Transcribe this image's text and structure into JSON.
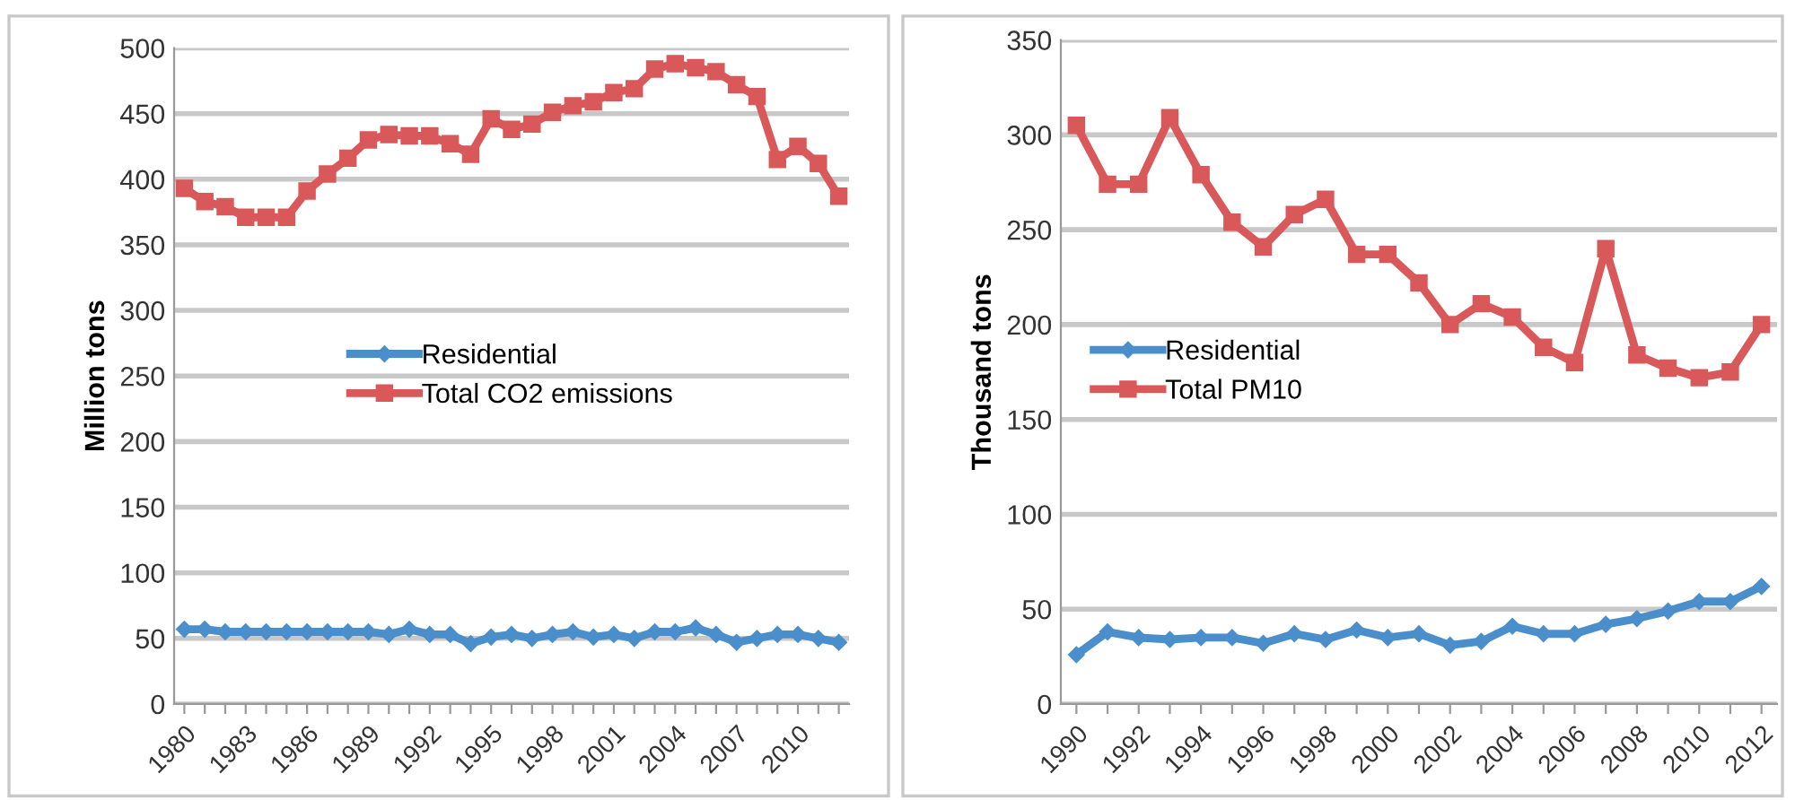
{
  "chart_data": [
    {
      "type": "line",
      "ylabel": "Million tons",
      "categories": [
        "1980",
        null,
        null,
        "1983",
        null,
        null,
        "1986",
        null,
        null,
        "1989",
        null,
        null,
        "1992",
        null,
        null,
        "1995",
        null,
        null,
        "1998",
        null,
        null,
        "2001",
        null,
        null,
        "2004",
        null,
        null,
        "2007",
        null,
        null,
        "2010",
        null,
        null
      ],
      "series": [
        {
          "name": "Residential",
          "color": "#4a8fcb",
          "marker": "diamond",
          "values": [
            57,
            57,
            55,
            55,
            55,
            55,
            55,
            55,
            55,
            55,
            53,
            57,
            53,
            53,
            46,
            51,
            53,
            50,
            53,
            55,
            51,
            53,
            50,
            55,
            55,
            58,
            53,
            47,
            50,
            53,
            53,
            50,
            47
          ]
        },
        {
          "name": "Total CO2 emissions",
          "color": "#d9595a",
          "marker": "square",
          "values": [
            393,
            383,
            379,
            371,
            371,
            371,
            391,
            404,
            416,
            430,
            434,
            433,
            433,
            427,
            419,
            446,
            438,
            442,
            451,
            456,
            459,
            466,
            469,
            484,
            488,
            485,
            482,
            472,
            463,
            415,
            425,
            412,
            387
          ]
        }
      ],
      "ylim": [
        0,
        500
      ],
      "yticks": [
        0,
        50,
        100,
        150,
        200,
        250,
        300,
        350,
        400,
        450,
        500
      ],
      "grid": "y",
      "legend": "center"
    },
    {
      "type": "line",
      "ylabel": "Thousand tons",
      "categories": [
        "1990",
        null,
        "1992",
        null,
        "1994",
        null,
        "1996",
        null,
        "1998",
        null,
        "2000",
        null,
        "2002",
        null,
        "2004",
        null,
        "2006",
        null,
        "2008",
        null,
        "2010",
        null,
        "2012"
      ],
      "series": [
        {
          "name": "Residential",
          "color": "#4a8fcb",
          "marker": "diamond",
          "values": [
            26,
            38,
            35,
            34,
            35,
            35,
            32,
            37,
            34,
            39,
            35,
            37,
            31,
            33,
            41,
            37,
            37,
            42,
            45,
            49,
            54,
            54,
            62
          ]
        },
        {
          "name": "Total PM10",
          "color": "#d9595a",
          "marker": "square",
          "values": [
            305,
            274,
            274,
            309,
            279,
            254,
            241,
            258,
            266,
            237,
            237,
            222,
            200,
            211,
            204,
            188,
            180,
            240,
            184,
            177,
            172,
            175,
            200
          ]
        }
      ],
      "ylim": [
        0,
        350
      ],
      "yticks": [
        0,
        50,
        100,
        150,
        200,
        250,
        300,
        350
      ],
      "grid": "y",
      "legend": "center left"
    }
  ]
}
